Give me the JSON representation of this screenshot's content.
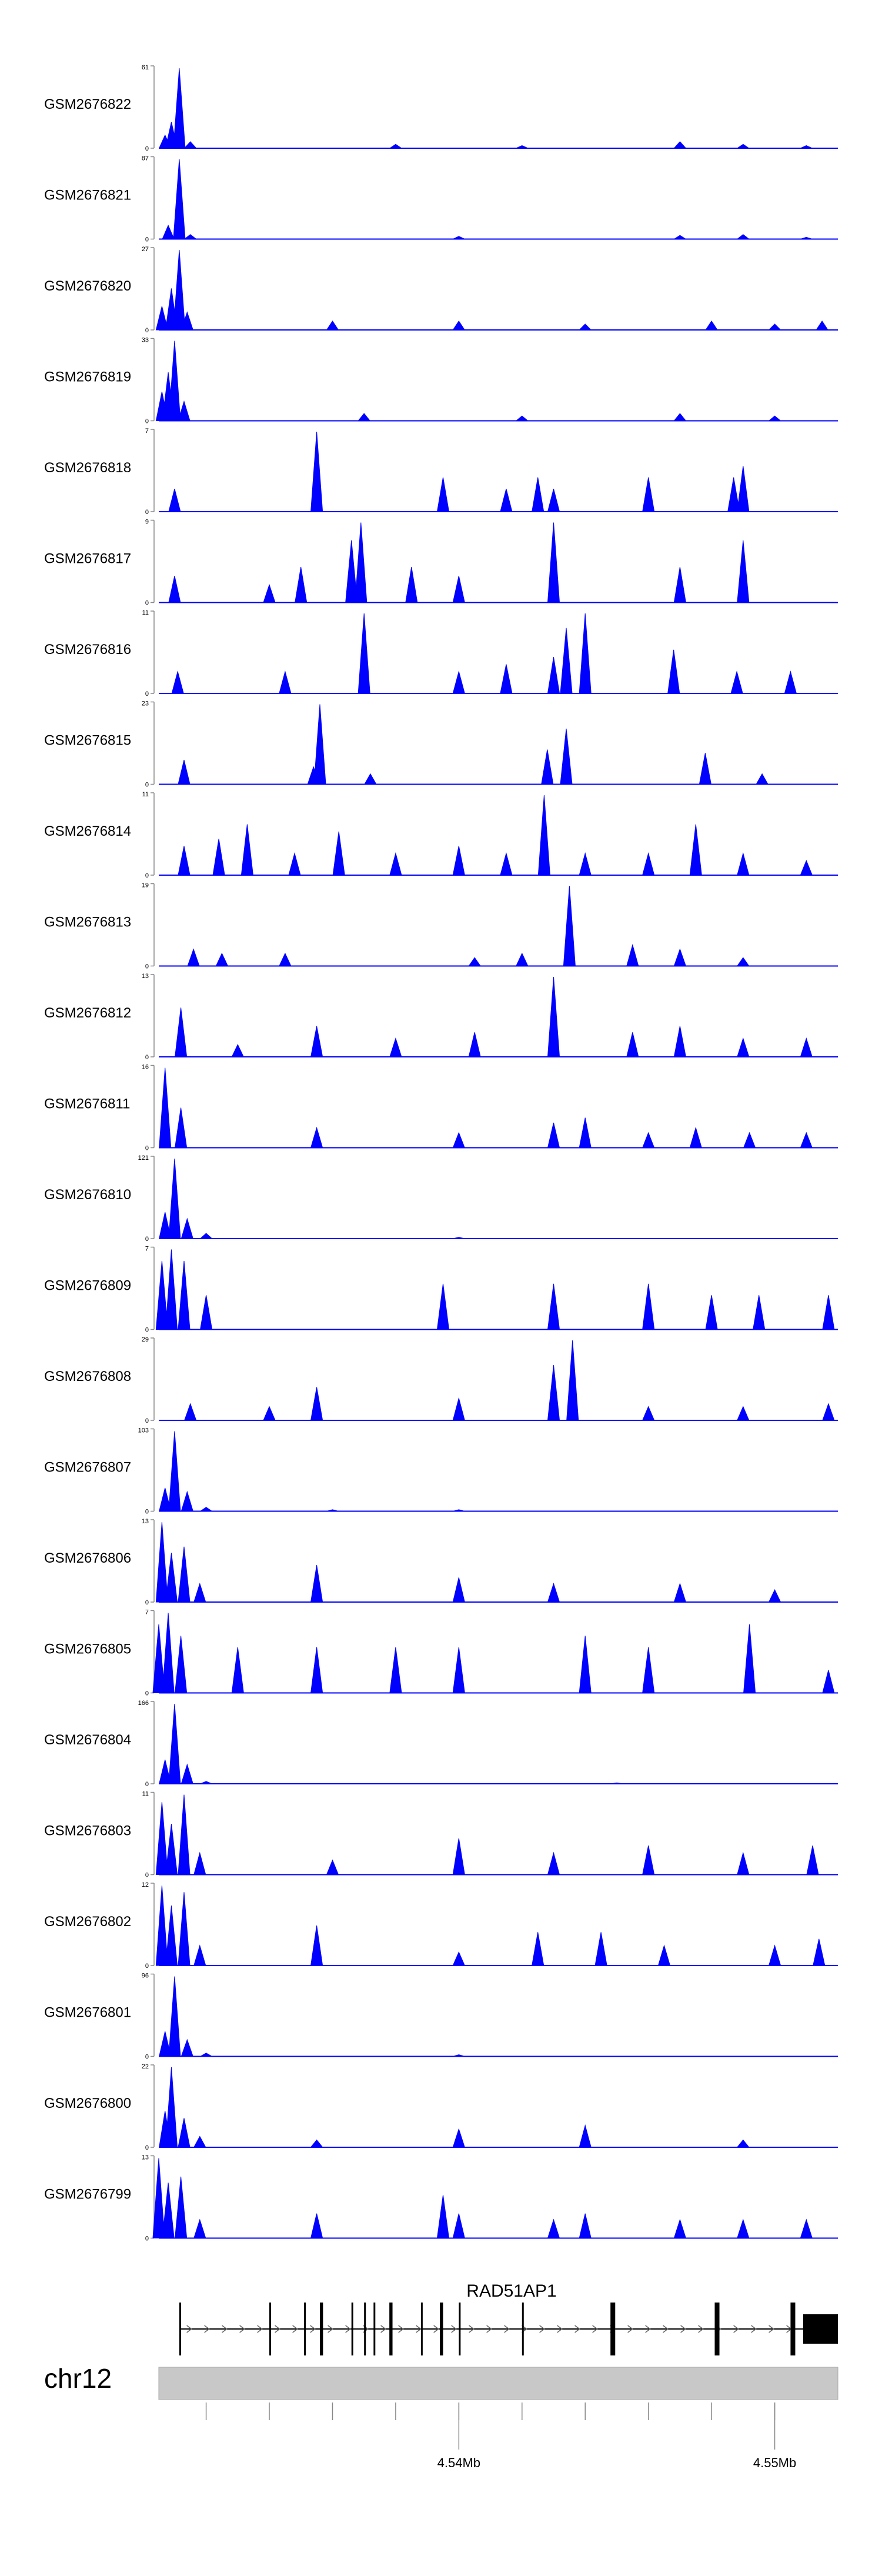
{
  "chart_data": {
    "type": "area",
    "title": "",
    "xlabel": "",
    "ylabel": "",
    "x_range": [
      4.5305,
      4.552
    ],
    "colors": {
      "track_fill": "#0000ff",
      "axis": "#888888",
      "ideogram": "#c8c8c8",
      "gene": "#000000",
      "text": "#000000"
    },
    "tracks": [
      {
        "name": "GSM2676822",
        "ymax": 61,
        "peaks": [
          [
            4.5307,
            10
          ],
          [
            4.5309,
            20
          ],
          [
            4.53115,
            61
          ],
          [
            4.5315,
            5
          ],
          [
            4.538,
            3
          ],
          [
            4.542,
            2
          ],
          [
            4.547,
            5
          ],
          [
            4.549,
            3
          ],
          [
            4.551,
            2
          ]
        ]
      },
      {
        "name": "GSM2676821",
        "ymax": 87,
        "peaks": [
          [
            4.5308,
            15
          ],
          [
            4.53115,
            87
          ],
          [
            4.5315,
            5
          ],
          [
            4.54,
            3
          ],
          [
            4.547,
            4
          ],
          [
            4.549,
            5
          ],
          [
            4.551,
            2
          ]
        ]
      },
      {
        "name": "GSM2676820",
        "ymax": 27,
        "peaks": [
          [
            4.5306,
            8
          ],
          [
            4.5309,
            14
          ],
          [
            4.53115,
            27
          ],
          [
            4.5314,
            6
          ],
          [
            4.536,
            3
          ],
          [
            4.54,
            3
          ],
          [
            4.544,
            2
          ],
          [
            4.548,
            3
          ],
          [
            4.55,
            2
          ],
          [
            4.5515,
            3
          ]
        ]
      },
      {
        "name": "GSM2676819",
        "ymax": 33,
        "peaks": [
          [
            4.5306,
            12
          ],
          [
            4.5308,
            20
          ],
          [
            4.531,
            33
          ],
          [
            4.5313,
            8
          ],
          [
            4.537,
            3
          ],
          [
            4.542,
            2
          ],
          [
            4.547,
            3
          ],
          [
            4.55,
            2
          ]
        ]
      },
      {
        "name": "GSM2676818",
        "ymax": 7,
        "peaks": [
          [
            4.531,
            2
          ],
          [
            4.5355,
            7
          ],
          [
            4.5395,
            3
          ],
          [
            4.5415,
            2
          ],
          [
            4.5425,
            3
          ],
          [
            4.543,
            2
          ],
          [
            4.546,
            3
          ],
          [
            4.5487,
            3
          ],
          [
            4.549,
            4
          ]
        ]
      },
      {
        "name": "GSM2676817",
        "ymax": 9,
        "peaks": [
          [
            4.531,
            3
          ],
          [
            4.534,
            2
          ],
          [
            4.535,
            4
          ],
          [
            4.5366,
            7
          ],
          [
            4.5369,
            9
          ],
          [
            4.5385,
            4
          ],
          [
            4.54,
            3
          ],
          [
            4.543,
            9
          ],
          [
            4.547,
            4
          ],
          [
            4.549,
            7
          ]
        ]
      },
      {
        "name": "GSM2676816",
        "ymax": 11,
        "peaks": [
          [
            4.5311,
            3
          ],
          [
            4.5345,
            3
          ],
          [
            4.537,
            11
          ],
          [
            4.54,
            3
          ],
          [
            4.5415,
            4
          ],
          [
            4.543,
            5
          ],
          [
            4.5434,
            9
          ],
          [
            4.544,
            11
          ],
          [
            4.5468,
            6
          ],
          [
            4.5488,
            3
          ],
          [
            4.5505,
            3
          ]
        ]
      },
      {
        "name": "GSM2676815",
        "ymax": 23,
        "peaks": [
          [
            4.5313,
            7
          ],
          [
            4.5354,
            5
          ],
          [
            4.5356,
            23
          ],
          [
            4.5372,
            3
          ],
          [
            4.5428,
            10
          ],
          [
            4.5434,
            16
          ],
          [
            4.5478,
            9
          ],
          [
            4.5496,
            3
          ]
        ]
      },
      {
        "name": "GSM2676814",
        "ymax": 11,
        "peaks": [
          [
            4.5313,
            4
          ],
          [
            4.5324,
            5
          ],
          [
            4.5333,
            7
          ],
          [
            4.5348,
            3
          ],
          [
            4.5362,
            6
          ],
          [
            4.538,
            3
          ],
          [
            4.54,
            4
          ],
          [
            4.5415,
            3
          ],
          [
            4.5427,
            11
          ],
          [
            4.544,
            3
          ],
          [
            4.546,
            3
          ],
          [
            4.5475,
            7
          ],
          [
            4.549,
            3
          ],
          [
            4.551,
            2
          ]
        ]
      },
      {
        "name": "GSM2676813",
        "ymax": 19,
        "peaks": [
          [
            4.5316,
            4
          ],
          [
            4.5325,
            3
          ],
          [
            4.5345,
            3
          ],
          [
            4.5405,
            2
          ],
          [
            4.542,
            3
          ],
          [
            4.5435,
            19
          ],
          [
            4.5455,
            5
          ],
          [
            4.547,
            4
          ],
          [
            4.549,
            2
          ]
        ]
      },
      {
        "name": "GSM2676812",
        "ymax": 13,
        "peaks": [
          [
            4.5312,
            8
          ],
          [
            4.533,
            2
          ],
          [
            4.5355,
            5
          ],
          [
            4.538,
            3
          ],
          [
            4.5405,
            4
          ],
          [
            4.543,
            13
          ],
          [
            4.5455,
            4
          ],
          [
            4.547,
            5
          ],
          [
            4.549,
            3
          ],
          [
            4.551,
            3
          ]
        ]
      },
      {
        "name": "GSM2676811",
        "ymax": 16,
        "peaks": [
          [
            4.5307,
            16
          ],
          [
            4.5312,
            8
          ],
          [
            4.5355,
            4
          ],
          [
            4.54,
            3
          ],
          [
            4.543,
            5
          ],
          [
            4.544,
            6
          ],
          [
            4.546,
            3
          ],
          [
            4.5475,
            4
          ],
          [
            4.5492,
            3
          ],
          [
            4.551,
            3
          ]
        ]
      },
      {
        "name": "GSM2676810",
        "ymax": 121,
        "peaks": [
          [
            4.5307,
            40
          ],
          [
            4.531,
            121
          ],
          [
            4.5314,
            30
          ],
          [
            4.532,
            8
          ],
          [
            4.54,
            2
          ]
        ]
      },
      {
        "name": "GSM2676809",
        "ymax": 7,
        "peaks": [
          [
            4.5306,
            6
          ],
          [
            4.5309,
            7
          ],
          [
            4.5313,
            6
          ],
          [
            4.532,
            3
          ],
          [
            4.5395,
            4
          ],
          [
            4.543,
            4
          ],
          [
            4.546,
            4
          ],
          [
            4.548,
            3
          ],
          [
            4.5495,
            3
          ],
          [
            4.5517,
            3
          ]
        ]
      },
      {
        "name": "GSM2676808",
        "ymax": 29,
        "peaks": [
          [
            4.5315,
            6
          ],
          [
            4.534,
            5
          ],
          [
            4.5355,
            12
          ],
          [
            4.54,
            8
          ],
          [
            4.543,
            20
          ],
          [
            4.5436,
            29
          ],
          [
            4.546,
            5
          ],
          [
            4.549,
            5
          ],
          [
            4.5517,
            6
          ]
        ]
      },
      {
        "name": "GSM2676807",
        "ymax": 103,
        "peaks": [
          [
            4.5307,
            30
          ],
          [
            4.531,
            103
          ],
          [
            4.5314,
            25
          ],
          [
            4.532,
            5
          ],
          [
            4.536,
            2
          ],
          [
            4.54,
            2
          ]
        ]
      },
      {
        "name": "GSM2676806",
        "ymax": 13,
        "peaks": [
          [
            4.5306,
            13
          ],
          [
            4.5309,
            8
          ],
          [
            4.5313,
            9
          ],
          [
            4.5318,
            3
          ],
          [
            4.5355,
            6
          ],
          [
            4.54,
            4
          ],
          [
            4.543,
            3
          ],
          [
            4.547,
            3
          ],
          [
            4.55,
            2
          ]
        ]
      },
      {
        "name": "GSM2676805",
        "ymax": 7,
        "peaks": [
          [
            4.5305,
            6
          ],
          [
            4.5308,
            7
          ],
          [
            4.5312,
            5
          ],
          [
            4.533,
            4
          ],
          [
            4.5355,
            4
          ],
          [
            4.538,
            4
          ],
          [
            4.54,
            4
          ],
          [
            4.544,
            5
          ],
          [
            4.546,
            4
          ],
          [
            4.5492,
            6
          ],
          [
            4.5517,
            2
          ]
        ]
      },
      {
        "name": "GSM2676804",
        "ymax": 166,
        "peaks": [
          [
            4.5307,
            50
          ],
          [
            4.531,
            166
          ],
          [
            4.5314,
            40
          ],
          [
            4.532,
            5
          ],
          [
            4.545,
            2
          ]
        ]
      },
      {
        "name": "GSM2676803",
        "ymax": 11,
        "peaks": [
          [
            4.5306,
            10
          ],
          [
            4.5309,
            7
          ],
          [
            4.5313,
            11
          ],
          [
            4.5318,
            3
          ],
          [
            4.536,
            2
          ],
          [
            4.54,
            5
          ],
          [
            4.543,
            3
          ],
          [
            4.546,
            4
          ],
          [
            4.549,
            3
          ],
          [
            4.5512,
            4
          ]
        ]
      },
      {
        "name": "GSM2676802",
        "ymax": 12,
        "peaks": [
          [
            4.5306,
            12
          ],
          [
            4.5309,
            9
          ],
          [
            4.5313,
            11
          ],
          [
            4.5318,
            3
          ],
          [
            4.5355,
            6
          ],
          [
            4.54,
            2
          ],
          [
            4.5425,
            5
          ],
          [
            4.5445,
            5
          ],
          [
            4.5465,
            3
          ],
          [
            4.55,
            3
          ],
          [
            4.5514,
            4
          ]
        ]
      },
      {
        "name": "GSM2676801",
        "ymax": 96,
        "peaks": [
          [
            4.5307,
            30
          ],
          [
            4.531,
            96
          ],
          [
            4.5314,
            20
          ],
          [
            4.532,
            4
          ],
          [
            4.54,
            2
          ]
        ]
      },
      {
        "name": "GSM2676800",
        "ymax": 22,
        "peaks": [
          [
            4.5307,
            10
          ],
          [
            4.5309,
            22
          ],
          [
            4.5313,
            8
          ],
          [
            4.5318,
            3
          ],
          [
            4.5355,
            2
          ],
          [
            4.54,
            5
          ],
          [
            4.544,
            6
          ],
          [
            4.549,
            2
          ]
        ]
      },
      {
        "name": "GSM2676799",
        "ymax": 13,
        "peaks": [
          [
            4.5305,
            13
          ],
          [
            4.5308,
            9
          ],
          [
            4.5312,
            10
          ],
          [
            4.5318,
            3
          ],
          [
            4.5355,
            4
          ],
          [
            4.5395,
            7
          ],
          [
            4.54,
            4
          ],
          [
            4.543,
            3
          ],
          [
            4.544,
            4
          ],
          [
            4.547,
            3
          ],
          [
            4.549,
            3
          ],
          [
            4.551,
            3
          ]
        ]
      }
    ],
    "gene": {
      "name": "RAD51AP1",
      "start": 4.5312,
      "end": 4.552,
      "strand": "+",
      "exons": [
        [
          4.53115,
          4.5312
        ],
        [
          4.534,
          4.53405
        ],
        [
          4.5351,
          4.53515
        ],
        [
          4.5356,
          4.5357
        ],
        [
          4.5366,
          4.53665
        ],
        [
          4.537,
          4.53705
        ],
        [
          4.5373,
          4.53735
        ],
        [
          4.5378,
          4.5379
        ],
        [
          4.5388,
          4.53885
        ],
        [
          4.5394,
          4.5395
        ],
        [
          4.54,
          4.53995
        ],
        [
          4.542,
          4.54205
        ],
        [
          4.5448,
          4.54495
        ],
        [
          4.5481,
          4.54825
        ],
        [
          4.5505,
          4.55065
        ],
        [
          4.5509,
          4.552
        ]
      ]
    },
    "ideogram": {
      "chromosome": "chr12",
      "ticks": [
        4.532,
        4.534,
        4.536,
        4.538,
        4.54,
        4.542,
        4.544,
        4.546,
        4.548,
        4.55
      ],
      "tick_labels": [
        {
          "x": 4.54,
          "label": "4.54Mb"
        },
        {
          "x": 4.55,
          "label": "4.55Mb"
        }
      ]
    }
  }
}
